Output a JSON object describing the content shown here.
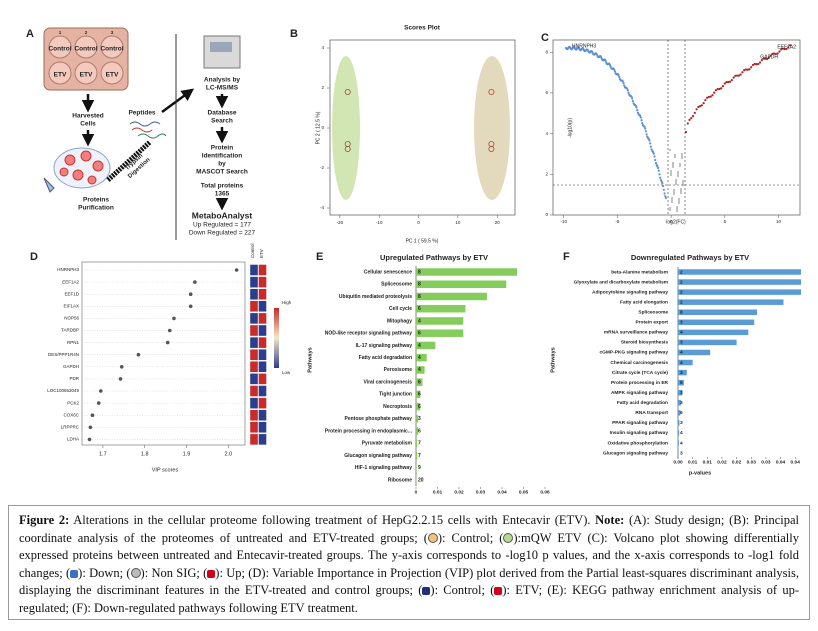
{
  "figure": {
    "panel_a": {
      "letter": "A",
      "wells": [
        "1",
        "2",
        "3"
      ],
      "groups": [
        "Control",
        "Control",
        "Control",
        "ETV",
        "ETV",
        "ETV"
      ],
      "harvested": [
        "Harvested",
        "Cells"
      ],
      "peptides": "Peptides",
      "trypsin": [
        "Trypsin",
        "Digestion"
      ],
      "purification": [
        "Proteins",
        "Purification"
      ],
      "analysis": [
        "Analysis by",
        "LC-MS/MS"
      ],
      "database": [
        "Database",
        "Search"
      ],
      "identification": [
        "Protein",
        "Identification",
        "by",
        "MASCOT Search"
      ],
      "total": [
        "Total proteins",
        "1365"
      ],
      "metabo": "MetaboAnalyst",
      "up": "Up Regulated = 177",
      "down": "Down Regulated = 227"
    },
    "panel_b": {
      "letter": "B",
      "title": "Scores Plot",
      "x_label": "PC 1 ( 59.5 %)",
      "y_label": "PC 2 ( 12.5 %)",
      "xlim": [
        -22.5,
        24.5
      ],
      "ylim": [
        -4.35,
        4.4
      ],
      "xticks": [
        -20,
        -10,
        0,
        10,
        20
      ],
      "yticks": [
        -4,
        -2,
        0,
        2,
        4
      ],
      "series": [
        {
          "name": "Control",
          "color": "#8a5a3a",
          "x": [
            -18,
            -18,
            -18
          ],
          "y": [
            1.8,
            -0.8,
            -1.05
          ]
        },
        {
          "name": "ETV",
          "color": "#a8503a",
          "x": [
            18.5,
            18.5,
            18.5
          ],
          "y": [
            1.8,
            -0.8,
            -1.05
          ]
        }
      ]
    },
    "panel_c": {
      "letter": "C",
      "x_label": "log2(FC)",
      "y_label": "-log10(p)",
      "xlim": [
        -11,
        12
      ],
      "ylim": [
        0,
        8.6
      ],
      "xticks": [
        -10,
        -5,
        0,
        5,
        10
      ],
      "yticks": [
        0,
        2,
        4,
        6,
        8
      ],
      "genes": [
        "HNRNPH3",
        "EEF1A2",
        "GAPDH"
      ]
    },
    "panel_d": {
      "letter": "D",
      "x_label": "VIP scores",
      "columns": [
        "Control",
        "ETV"
      ],
      "scale": [
        "High",
        "Low"
      ],
      "categories": [
        "HNRNPH3",
        "EEF1A2",
        "EEF1D",
        "EIF1AX",
        "NOP56",
        "TARDBP",
        "RPN1",
        "DES/PPP1R4N",
        "GAPDH",
        "PDR",
        "LOC100653049",
        "PCK2",
        "COX6C",
        "LRPPRC",
        "LDHA"
      ],
      "values": [
        2.02,
        1.92,
        1.91,
        1.91,
        1.87,
        1.86,
        1.855,
        1.785,
        1.745,
        1.742,
        1.695,
        1.69,
        1.675,
        1.67,
        1.668
      ],
      "xlim": [
        1.65,
        2.04
      ],
      "xticks": [
        1.7,
        1.8,
        1.9,
        {
          "value": 2,
          "label": "2.0"
        }
      ],
      "heatmap": [
        [
          "#2d3d8e",
          "#c92a2a"
        ],
        [
          "#2d3d8e",
          "#c92a2a"
        ],
        [
          "#2d3d8e",
          "#c92a2a"
        ],
        [
          "#c92a2a",
          "#2d3d8e"
        ],
        [
          "#2d3d8e",
          "#c92a2a"
        ],
        [
          "#c92a2a",
          "#2d3d8e"
        ],
        [
          "#2d3d8e",
          "#c92a2a"
        ],
        [
          "#c92a2a",
          "#2d3d8e"
        ],
        [
          "#c92a2a",
          "#2d3d8e"
        ],
        [
          "#2d3d8e",
          "#c92a2a"
        ],
        [
          "#c92a2a",
          "#2d3d8e"
        ],
        [
          "#2d3d8e",
          "#c92a2a"
        ],
        [
          "#c92a2a",
          "#2d3d8e"
        ],
        [
          "#c92a2a",
          "#2d3d8e"
        ],
        [
          "#c92a2a",
          "#2d3d8e"
        ]
      ]
    },
    "panel_e": {
      "letter": "E",
      "title": "Upregulated Pathways by ETV",
      "y_label": "Pathways",
      "x_label": "p-values",
      "color": "#86cc5c",
      "categories": [
        "Cellular senescence",
        "Spliceosome",
        "Ubiquitin mediated proteolysis",
        "Cell cycle",
        "Mitophagy",
        "NOD-like receptor signaling pathway",
        "IL-17 signaling pathway",
        "Fatty acid degradation",
        "Peroxisome",
        "Viral carcinogenesis",
        "Tight junction",
        "Necroptosis",
        "Pentose phosphate pathway",
        "Protein processing in endoplasmic...",
        "Pyruvate metabolism",
        "Glucagon signaling pathway",
        "HIF-1 signaling pathway",
        "Ribosome"
      ],
      "values": [
        0.047,
        0.042,
        0.033,
        0.023,
        0.022,
        0.022,
        0.009,
        0.005,
        0.004,
        0.003,
        0.002,
        0.002,
        0.001,
        0.001,
        0.0005,
        0.0005,
        0.0003,
        0.0001
      ],
      "counts": [
        "8",
        "8",
        "8",
        "6",
        "4",
        "6",
        "4",
        "4",
        "4",
        "6",
        "6",
        "6",
        "3",
        "6",
        "7",
        "7",
        "9",
        "20"
      ],
      "xlim": [
        0,
        0.06
      ],
      "xticks": [
        0,
        0.01,
        0.02,
        0.03,
        0.04,
        0.05,
        0.06
      ]
    },
    "panel_f": {
      "letter": "F",
      "title": "Downregulated Pathways by ETV",
      "y_label": "Pathways",
      "x_label": "p-values",
      "color": "#5b9bd5",
      "categories": [
        "beta-Alanine metabolism",
        "Glyoxylate and dicarboxylate metabolism",
        "Adipocytokine signaling pathway",
        "Fatty acid elongation",
        "Spliceosome",
        "Protein export",
        "mRNA surveillance pathway",
        "Steroid biosynthesis",
        "cGMP-PKG signaling pathway",
        "Chemical carcinogenesis",
        "Citrate cycle (TCA cycle)",
        "Protein processing in ER",
        "AMPK signaling pathway",
        "Fatty acid degradation",
        "RNA transport",
        "PPAR signaling pathway",
        "Insulin signaling pathway",
        "Oxidative phosphorylation",
        "Glucagon signaling pathway"
      ],
      "values": [
        0.042,
        0.042,
        0.042,
        0.036,
        0.027,
        0.026,
        0.024,
        0.02,
        0.011,
        0.005,
        0.003,
        0.002,
        0.0015,
        0.001,
        0.0008,
        0.0005,
        0.0004,
        0.0003,
        0.0002
      ],
      "counts": [
        "2",
        "2",
        "2",
        "2",
        "8",
        "3",
        "4",
        "3",
        "4",
        "4",
        "3",
        "5",
        "3",
        "3",
        "6",
        "3",
        "4",
        "4",
        "3"
      ],
      "xlim": [
        0,
        0.043
      ],
      "xticks": [
        {
          "value": 0,
          "label": "0.00"
        },
        {
          "value": 0.005,
          "label": "0.01"
        },
        0.01,
        {
          "value": 0.015,
          "label": "0.02"
        },
        0.02,
        {
          "value": 0.025,
          "label": "0.03"
        },
        0.03,
        {
          "value": 0.035,
          "label": "0.04"
        },
        0.04
      ]
    },
    "caption": [
      "Figure 2:",
      " Alterations in the cellular proteome following treatment of HepG2.2.15 cells with Entecavir (ETV). ",
      "Note:",
      " (A): Study design; (B): Principal coordinate analysis of the proteomes of untreated and ETV-treated groups; (",
      "): Control; (",
      "):mQW ETV (C): Volcano plot showing differentially expressed proteins between untreated and Entecavir-treated groups. The y-axis corresponds to -log10 p values, and the x-axis corresponds to -log1 fold changes; (",
      "): Down; (",
      "): Non SIG; (",
      "): Up; (D): Variable Importance in Projection (VIP) plot derived from the Partial least-squares discriminant analysis, displaying the discriminant features in the ETV-treated and control groups; (",
      "): Control; (",
      "): ETV; (E): KEGG pathway enrichment analysis of up-regulated; (F): Down-regulated pathways following ETV treatment."
    ]
  }
}
